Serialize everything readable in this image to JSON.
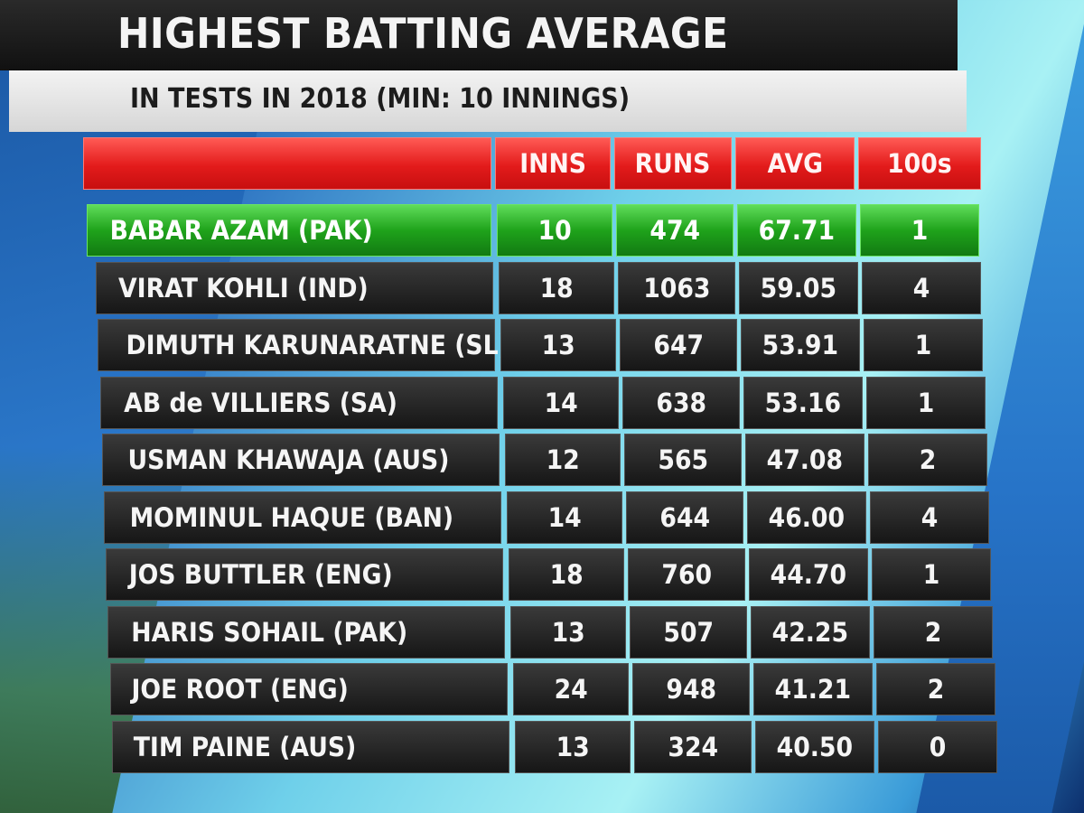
{
  "title": "HIGHEST BATTING AVERAGE",
  "subtitle": "IN TESTS IN 2018 (MIN: 10 INNINGS)",
  "table": {
    "headers": [
      "",
      "INNS",
      "RUNS",
      "AVG",
      "100s"
    ],
    "rows": [
      {
        "player": "BABAR AZAM (PAK)",
        "inns": "10",
        "runs": "474",
        "avg": "67.71",
        "hundreds": "1",
        "highlight": true
      },
      {
        "player": "VIRAT KOHLI (IND)",
        "inns": "18",
        "runs": "1063",
        "avg": "59.05",
        "hundreds": "4"
      },
      {
        "player": "DIMUTH KARUNARATNE (SL)",
        "inns": "13",
        "runs": "647",
        "avg": "53.91",
        "hundreds": "1"
      },
      {
        "player": "AB de VILLIERS (SA)",
        "inns": "14",
        "runs": "638",
        "avg": "53.16",
        "hundreds": "1"
      },
      {
        "player": "USMAN KHAWAJA (AUS)",
        "inns": "12",
        "runs": "565",
        "avg": "47.08",
        "hundreds": "2"
      },
      {
        "player": "MOMINUL HAQUE (BAN)",
        "inns": "14",
        "runs": "644",
        "avg": "46.00",
        "hundreds": "4"
      },
      {
        "player": "JOS BUTTLER (ENG)",
        "inns": "18",
        "runs": "760",
        "avg": "44.70",
        "hundreds": "1"
      },
      {
        "player": "HARIS SOHAIL (PAK)",
        "inns": "13",
        "runs": "507",
        "avg": "42.25",
        "hundreds": "2"
      },
      {
        "player": "JOE ROOT (ENG)",
        "inns": "24",
        "runs": "948",
        "avg": "41.21",
        "hundreds": "2"
      },
      {
        "player": "TIM PAINE (AUS)",
        "inns": "13",
        "runs": "324",
        "avg": "40.50",
        "hundreds": "0"
      }
    ]
  },
  "colors": {
    "header_red": "#e31b1b",
    "highlight_green": "#1fa31b",
    "row_dark": "#1e1e1e"
  }
}
